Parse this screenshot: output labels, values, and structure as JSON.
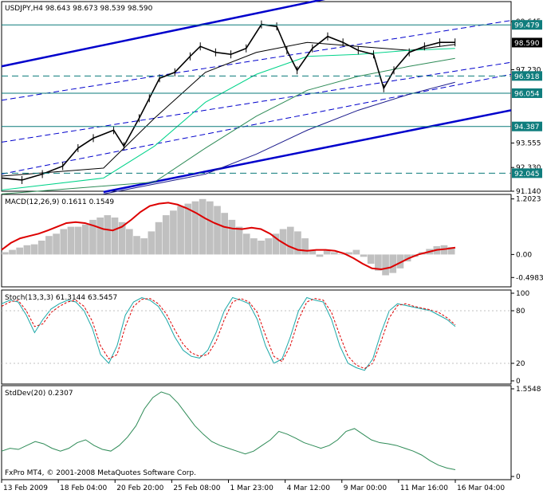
{
  "chart_data": [
    {
      "type": "candlestick",
      "title": "USDJPY,H4  98.643 98.673 98.539 98.590",
      "symbol": "USDJPY",
      "timeframe": "H4",
      "ohlc_header": {
        "open": 98.643,
        "high": 98.673,
        "low": 98.539,
        "close": 98.59
      },
      "ylim": [
        91.14,
        100.645
      ],
      "price_ticks": [
        100.645,
        99.365,
        98.085,
        96.805,
        95.525,
        94.245,
        92.965,
        91.685
      ],
      "price_tick_labels": [
        "99.645",
        "97.230",
        "93.555",
        "92.330",
        "91.140"
      ],
      "last_price": "98.590",
      "horizontal_levels": [
        {
          "value": 99.479,
          "label": "99.479",
          "style": "solid"
        },
        {
          "value": 96.918,
          "label": "96.918",
          "style": "dashed"
        },
        {
          "value": 96.054,
          "label": "96.054",
          "style": "solid"
        },
        {
          "value": 94.387,
          "label": "94.387",
          "style": "solid"
        },
        {
          "value": 92.045,
          "label": "92.045",
          "style": "dashed"
        }
      ],
      "close_points": [
        {
          "x": 0,
          "y": 91.8
        },
        {
          "x": 8,
          "y": 91.7
        },
        {
          "x": 16,
          "y": 92.0
        },
        {
          "x": 24,
          "y": 92.4
        },
        {
          "x": 30,
          "y": 93.3
        },
        {
          "x": 36,
          "y": 93.8
        },
        {
          "x": 44,
          "y": 94.2
        },
        {
          "x": 48,
          "y": 93.4
        },
        {
          "x": 54,
          "y": 94.8
        },
        {
          "x": 58,
          "y": 95.8
        },
        {
          "x": 62,
          "y": 96.8
        },
        {
          "x": 68,
          "y": 97.1
        },
        {
          "x": 74,
          "y": 97.9
        },
        {
          "x": 78,
          "y": 98.4
        },
        {
          "x": 84,
          "y": 98.1
        },
        {
          "x": 90,
          "y": 98.0
        },
        {
          "x": 96,
          "y": 98.3
        },
        {
          "x": 102,
          "y": 99.5
        },
        {
          "x": 108,
          "y": 99.4
        },
        {
          "x": 112,
          "y": 98.2
        },
        {
          "x": 116,
          "y": 97.2
        },
        {
          "x": 122,
          "y": 98.3
        },
        {
          "x": 128,
          "y": 98.9
        },
        {
          "x": 134,
          "y": 98.6
        },
        {
          "x": 140,
          "y": 98.2
        },
        {
          "x": 146,
          "y": 98.0
        },
        {
          "x": 150,
          "y": 96.3
        },
        {
          "x": 154,
          "y": 97.2
        },
        {
          "x": 160,
          "y": 98.1
        },
        {
          "x": 166,
          "y": 98.4
        },
        {
          "x": 172,
          "y": 98.6
        },
        {
          "x": 178,
          "y": 98.6
        }
      ],
      "moving_averages": [
        {
          "color": "#000000",
          "points": [
            {
              "x": 0,
              "y": 91.9
            },
            {
              "x": 40,
              "y": 92.3
            },
            {
              "x": 60,
              "y": 94.8
            },
            {
              "x": 80,
              "y": 97.1
            },
            {
              "x": 100,
              "y": 98.1
            },
            {
              "x": 120,
              "y": 98.6
            },
            {
              "x": 140,
              "y": 98.4
            },
            {
              "x": 160,
              "y": 98.2
            },
            {
              "x": 178,
              "y": 98.5
            }
          ]
        },
        {
          "color": "#00d38a",
          "points": [
            {
              "x": 0,
              "y": 91.2
            },
            {
              "x": 40,
              "y": 91.8
            },
            {
              "x": 60,
              "y": 93.4
            },
            {
              "x": 80,
              "y": 95.6
            },
            {
              "x": 100,
              "y": 97.0
            },
            {
              "x": 120,
              "y": 97.9
            },
            {
              "x": 140,
              "y": 98.0
            },
            {
              "x": 160,
              "y": 98.2
            },
            {
              "x": 178,
              "y": 98.3
            }
          ]
        },
        {
          "color": "#2e8b57",
          "points": [
            {
              "x": 0,
              "y": 91.0
            },
            {
              "x": 60,
              "y": 91.6
            },
            {
              "x": 80,
              "y": 93.3
            },
            {
              "x": 100,
              "y": 94.9
            },
            {
              "x": 120,
              "y": 96.2
            },
            {
              "x": 140,
              "y": 96.9
            },
            {
              "x": 160,
              "y": 97.4
            },
            {
              "x": 178,
              "y": 97.8
            }
          ]
        },
        {
          "color": "#1a1a8c",
          "points": [
            {
              "x": 40,
              "y": 91.0
            },
            {
              "x": 80,
              "y": 92.0
            },
            {
              "x": 100,
              "y": 93.0
            },
            {
              "x": 120,
              "y": 94.2
            },
            {
              "x": 140,
              "y": 95.2
            },
            {
              "x": 160,
              "y": 96.0
            },
            {
              "x": 178,
              "y": 96.6
            }
          ]
        }
      ],
      "trend_lines": [
        {
          "color": "#0000cc",
          "style": "solid",
          "width": 2.5,
          "points": [
            {
              "x": 0,
              "y": 97.4
            },
            {
              "x": 128,
              "y": 100.8
            }
          ]
        },
        {
          "color": "#0000cc",
          "style": "solid",
          "width": 2.5,
          "points": [
            {
              "x": 40,
              "y": 91.1
            },
            {
              "x": 200,
              "y": 95.2
            }
          ]
        },
        {
          "color": "#0000cc",
          "style": "dashed",
          "width": 1,
          "points": [
            {
              "x": 0,
              "y": 95.7
            },
            {
              "x": 200,
              "y": 99.7
            }
          ]
        },
        {
          "color": "#0000cc",
          "style": "dashed",
          "width": 1,
          "points": [
            {
              "x": 0,
              "y": 93.6
            },
            {
              "x": 200,
              "y": 97.6
            }
          ]
        },
        {
          "color": "#0000cc",
          "style": "dashed",
          "width": 1,
          "points": [
            {
              "x": 0,
              "y": 92.0
            },
            {
              "x": 200,
              "y": 97.0
            }
          ]
        }
      ]
    },
    {
      "type": "bar+line",
      "title": "MACD(12,26,9) 0.1611 0.1549",
      "ylim": [
        -0.7,
        1.3
      ],
      "tick_labels": [
        {
          "value": 1.2023,
          "label": "1.2023"
        },
        {
          "value": 0.0,
          "label": "0.00"
        },
        {
          "value": -0.4983,
          "label": "-0.4983"
        }
      ],
      "histogram_color": "#c0c0c0",
      "signal_color": "#dd0000",
      "histogram": [
        0.05,
        0.1,
        0.15,
        0.2,
        0.22,
        0.3,
        0.4,
        0.45,
        0.55,
        0.6,
        0.6,
        0.65,
        0.75,
        0.8,
        0.85,
        0.8,
        0.7,
        0.55,
        0.4,
        0.35,
        0.5,
        0.7,
        0.85,
        0.95,
        1.05,
        1.1,
        1.15,
        1.2,
        1.15,
        1.05,
        0.9,
        0.75,
        0.6,
        0.45,
        0.35,
        0.3,
        0.35,
        0.45,
        0.55,
        0.6,
        0.5,
        0.35,
        0.1,
        -0.05,
        0.1,
        0.05,
        0.0,
        0.05,
        0.1,
        -0.05,
        -0.2,
        -0.35,
        -0.45,
        -0.4,
        -0.3,
        -0.15,
        -0.05,
        0.05,
        0.12,
        0.18,
        0.2,
        0.16
      ],
      "signal": [
        0.1,
        0.25,
        0.35,
        0.4,
        0.45,
        0.52,
        0.6,
        0.68,
        0.7,
        0.68,
        0.62,
        0.55,
        0.52,
        0.6,
        0.75,
        0.92,
        1.05,
        1.1,
        1.12,
        1.08,
        1.0,
        0.9,
        0.78,
        0.68,
        0.6,
        0.56,
        0.55,
        0.58,
        0.55,
        0.45,
        0.3,
        0.18,
        0.1,
        0.08,
        0.1,
        0.1,
        0.08,
        0.02,
        -0.08,
        -0.2,
        -0.3,
        -0.32,
        -0.28,
        -0.18,
        -0.08,
        0.0,
        0.05,
        0.1,
        0.12,
        0.15
      ]
    },
    {
      "type": "line",
      "title": "Stoch(13,3,3) 61.3144 63.5457",
      "ylim": [
        0,
        100
      ],
      "tick_labels": [
        {
          "value": 100,
          "label": "100"
        },
        {
          "value": 80,
          "label": "80"
        },
        {
          "value": 20,
          "label": "20"
        },
        {
          "value": 0,
          "label": "0"
        }
      ],
      "series": [
        {
          "color": "#1aa7a7",
          "style": "solid",
          "values": [
            88,
            92,
            90,
            75,
            55,
            70,
            82,
            88,
            92,
            90,
            80,
            60,
            30,
            20,
            40,
            75,
            90,
            95,
            92,
            85,
            70,
            50,
            35,
            28,
            26,
            35,
            55,
            80,
            95,
            92,
            88,
            70,
            40,
            20,
            25,
            50,
            80,
            95,
            92,
            90,
            70,
            40,
            20,
            15,
            12,
            25,
            55,
            80,
            88,
            86,
            84,
            82,
            80,
            75,
            70,
            62
          ]
        },
        {
          "color": "#dd0000",
          "style": "dashed",
          "values": [
            85,
            90,
            92,
            80,
            62,
            65,
            78,
            85,
            90,
            92,
            85,
            68,
            40,
            25,
            30,
            62,
            85,
            93,
            94,
            88,
            76,
            58,
            42,
            32,
            28,
            30,
            45,
            70,
            90,
            94,
            90,
            78,
            52,
            28,
            22,
            40,
            70,
            90,
            94,
            92,
            78,
            52,
            28,
            18,
            14,
            20,
            45,
            72,
            86,
            88,
            85,
            83,
            81,
            78,
            72,
            64
          ]
        }
      ]
    },
    {
      "type": "line",
      "title": "StdDev(20) 0.2307",
      "ylim": [
        0,
        1.5548
      ],
      "tick_labels": [
        {
          "value": 1.5548,
          "label": "1.5548"
        },
        {
          "value": 0,
          "label": "0"
        }
      ],
      "series": [
        {
          "color": "#2e8b57",
          "values": [
            0.45,
            0.5,
            0.48,
            0.55,
            0.62,
            0.58,
            0.5,
            0.45,
            0.5,
            0.6,
            0.65,
            0.55,
            0.48,
            0.45,
            0.55,
            0.7,
            0.9,
            1.2,
            1.4,
            1.5,
            1.45,
            1.3,
            1.1,
            0.9,
            0.75,
            0.62,
            0.55,
            0.5,
            0.45,
            0.4,
            0.45,
            0.55,
            0.65,
            0.8,
            0.75,
            0.68,
            0.6,
            0.55,
            0.5,
            0.55,
            0.65,
            0.8,
            0.85,
            0.75,
            0.65,
            0.6,
            0.58,
            0.55,
            0.5,
            0.45,
            0.38,
            0.28,
            0.2,
            0.15,
            0.12
          ]
        }
      ]
    }
  ],
  "x_axis_labels": [
    "13 Feb 2009",
    "18 Feb 04:00",
    "20 Feb 20:00",
    "25 Feb 08:00",
    "1 Mar 23:00",
    "4 Mar 12:00",
    "9 Mar 00:00",
    "11 Mar 16:00",
    "16 Mar 04:00"
  ],
  "footer_text": "FxPro MT4, © 2001-2008 MetaQuotes Software Corp.",
  "colors": {
    "background": "#ffffff",
    "axes": "#000000",
    "level_line": "#0a7a7a",
    "level_tag": "#0f7d7d",
    "price_tag": "#000000"
  }
}
